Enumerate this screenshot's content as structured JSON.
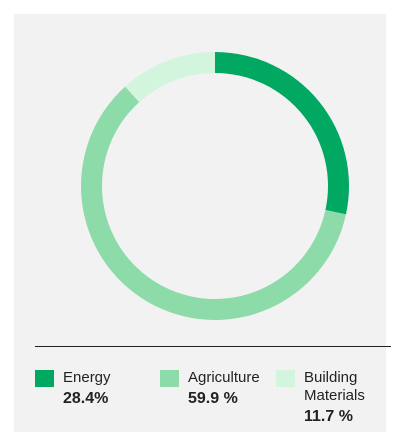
{
  "chart_data": {
    "type": "donut",
    "categories": [
      "Energy",
      "Agriculture",
      "Building Materials"
    ],
    "values": [
      28.4,
      59.9,
      11.7
    ],
    "value_labels": [
      "28.4%",
      "59.9 %",
      "11.7 %"
    ],
    "colors": [
      "#00a862",
      "#8ddba8",
      "#d4f5dd"
    ]
  }
}
